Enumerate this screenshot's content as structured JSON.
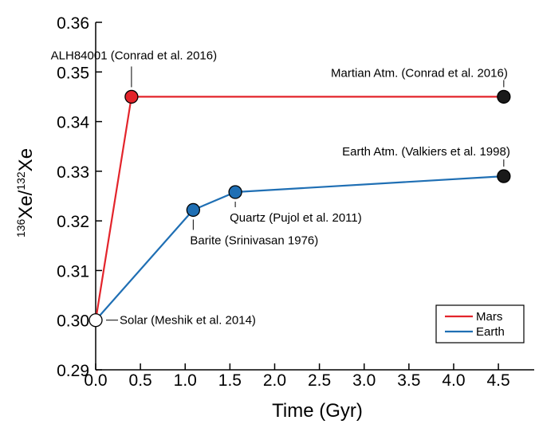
{
  "chart_data": {
    "type": "line",
    "title": "",
    "xlabel": "Time (Gyr)",
    "ylabel": {
      "sup1": "136",
      "base1": "Xe/",
      "sup2": "132",
      "base2": "Xe"
    },
    "xlim": [
      0.0,
      4.9
    ],
    "ylim": [
      0.29,
      0.36
    ],
    "xticks": [
      "0.0",
      "0.5",
      "1.0",
      "1.5",
      "2.0",
      "2.5",
      "3.0",
      "3.5",
      "4.0",
      "4.5"
    ],
    "xtick_values": [
      0,
      0.5,
      1.0,
      1.5,
      2.0,
      2.5,
      3.0,
      3.5,
      4.0,
      4.5
    ],
    "yticks": [
      "0.29",
      "0.30",
      "0.31",
      "0.32",
      "0.33",
      "0.34",
      "0.35",
      "0.36"
    ],
    "ytick_values": [
      0.29,
      0.3,
      0.31,
      0.32,
      0.33,
      0.34,
      0.35,
      0.36
    ],
    "grid": false,
    "legend_position": "bottom-right",
    "series": [
      {
        "name": "Mars",
        "color": "#e3242b",
        "points": [
          {
            "x": 0.0,
            "y": 0.3
          },
          {
            "x": 0.4,
            "y": 0.345
          },
          {
            "x": 4.56,
            "y": 0.345
          }
        ]
      },
      {
        "name": "Earth",
        "color": "#1f6fb4",
        "points": [
          {
            "x": 0.0,
            "y": 0.3
          },
          {
            "x": 1.09,
            "y": 0.3222
          },
          {
            "x": 1.56,
            "y": 0.3258
          },
          {
            "x": 4.56,
            "y": 0.329
          }
        ]
      }
    ],
    "markers": [
      {
        "x": 0.0,
        "y": 0.3,
        "fill": "#ffffff",
        "label": "Solar (Meshik et al. 2014)"
      },
      {
        "x": 0.4,
        "y": 0.345,
        "fill": "#e3242b",
        "label": "ALH84001 (Conrad et al. 2016)"
      },
      {
        "x": 4.56,
        "y": 0.345,
        "fill": "#1a1a1a",
        "label": "Martian Atm. (Conrad et al. 2016)"
      },
      {
        "x": 1.09,
        "y": 0.3222,
        "fill": "#1f6fb4",
        "label": "Barite (Srinivasan 1976)"
      },
      {
        "x": 1.56,
        "y": 0.3258,
        "fill": "#1f6fb4",
        "label": "Quartz (Pujol et al. 2011)"
      },
      {
        "x": 4.56,
        "y": 0.329,
        "fill": "#1a1a1a",
        "label": "Earth Atm. (Valkiers et al. 1998)"
      }
    ],
    "legend": [
      {
        "label": "Mars",
        "color": "#e3242b"
      },
      {
        "label": "Earth",
        "color": "#1f6fb4"
      }
    ]
  }
}
